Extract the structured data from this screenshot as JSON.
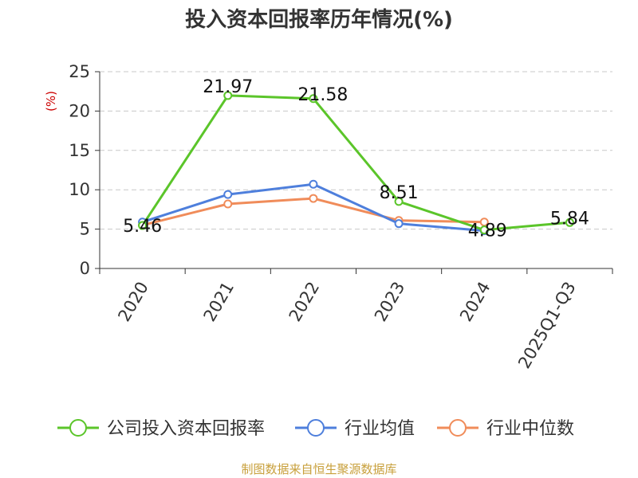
{
  "chart_data": {
    "type": "line",
    "title": "投入资本回报率历年情况(%)",
    "ylabel": "(%)",
    "xlabel": "",
    "categories": [
      "2020",
      "2021",
      "2022",
      "2023",
      "2024",
      "2025Q1-Q3"
    ],
    "yticks": [
      "0",
      "5",
      "10",
      "15",
      "20",
      "25"
    ],
    "ylim": [
      0,
      25
    ],
    "grid": true,
    "legend_position": "bottom",
    "series": [
      {
        "name": "公司投入资本回报率",
        "color": "#5bc52a",
        "values": [
          5.46,
          21.97,
          21.58,
          8.51,
          4.89,
          5.84
        ],
        "labels": [
          "5.46",
          "21.97",
          "21.58",
          "8.51",
          "4.89",
          "5.84"
        ]
      },
      {
        "name": "行业均值",
        "color": "#4e7fdc",
        "values": [
          5.9,
          9.4,
          10.7,
          5.7,
          4.8,
          null
        ]
      },
      {
        "name": "行业中位数",
        "color": "#f08c5a",
        "values": [
          5.5,
          8.2,
          8.9,
          6.1,
          5.9,
          null
        ]
      }
    ]
  },
  "source": "制图数据来自恒生聚源数据库"
}
